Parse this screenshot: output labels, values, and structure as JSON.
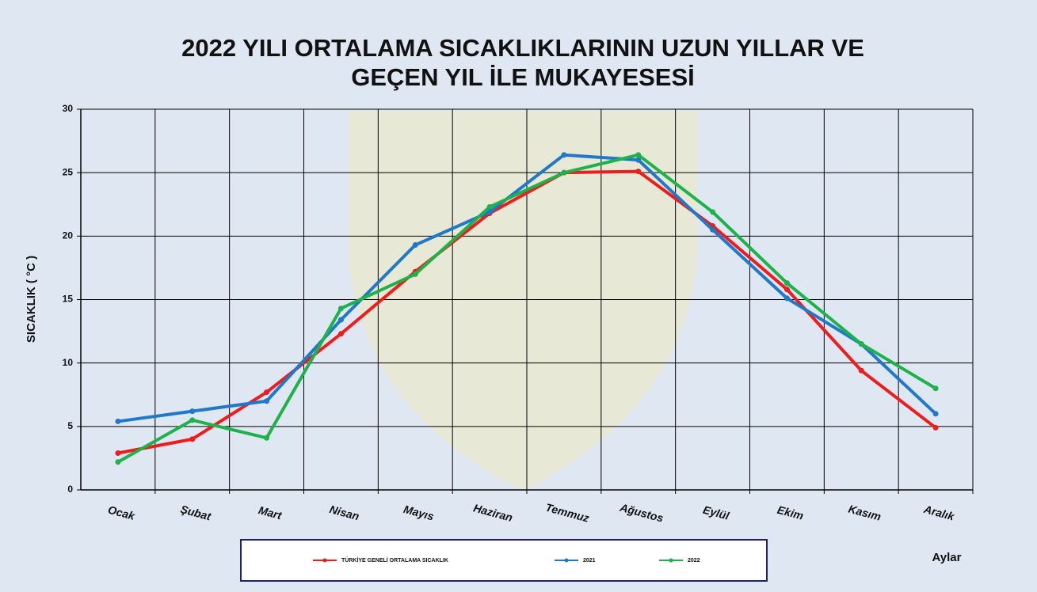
{
  "chart_data": {
    "type": "line",
    "title": [
      "2022 YILI ORTALAMA SICAKLIKLARININ UZUN YILLAR VE",
      "GEÇEN  YIL İLE MUKAYESESİ"
    ],
    "y_label": "SICAKLIK ( °C )",
    "x_label": "Aylar",
    "categories": [
      "Ocak",
      "Şubat",
      "Mart",
      "Nisan",
      "Mayıs",
      "Haziran",
      "Temmuz",
      "Ağustos",
      "Eylül",
      "Ekim",
      "Kasım",
      "Aralık"
    ],
    "series": [
      {
        "name": "TÜRKİYE GENELİ ORTALAMA SICAKLIK",
        "color": "#ee1c1c",
        "values": [
          2.9,
          4.0,
          7.7,
          12.3,
          17.2,
          21.8,
          25.0,
          25.1,
          20.8,
          15.8,
          9.4,
          4.9
        ]
      },
      {
        "name": "2021",
        "color": "#1f78c8",
        "values": [
          5.4,
          6.2,
          7.0,
          13.4,
          19.3,
          21.9,
          26.4,
          26.0,
          20.5,
          15.1,
          11.5,
          6.0
        ]
      },
      {
        "name": "2022",
        "color": "#1db24a",
        "values": [
          2.2,
          5.5,
          4.1,
          14.3,
          17.0,
          22.3,
          25.0,
          26.4,
          21.9,
          16.3,
          11.5,
          8.0
        ]
      }
    ],
    "ylim": [
      0,
      30
    ],
    "yticks": [
      0,
      5,
      10,
      15,
      20,
      25,
      30
    ],
    "grid": true
  }
}
